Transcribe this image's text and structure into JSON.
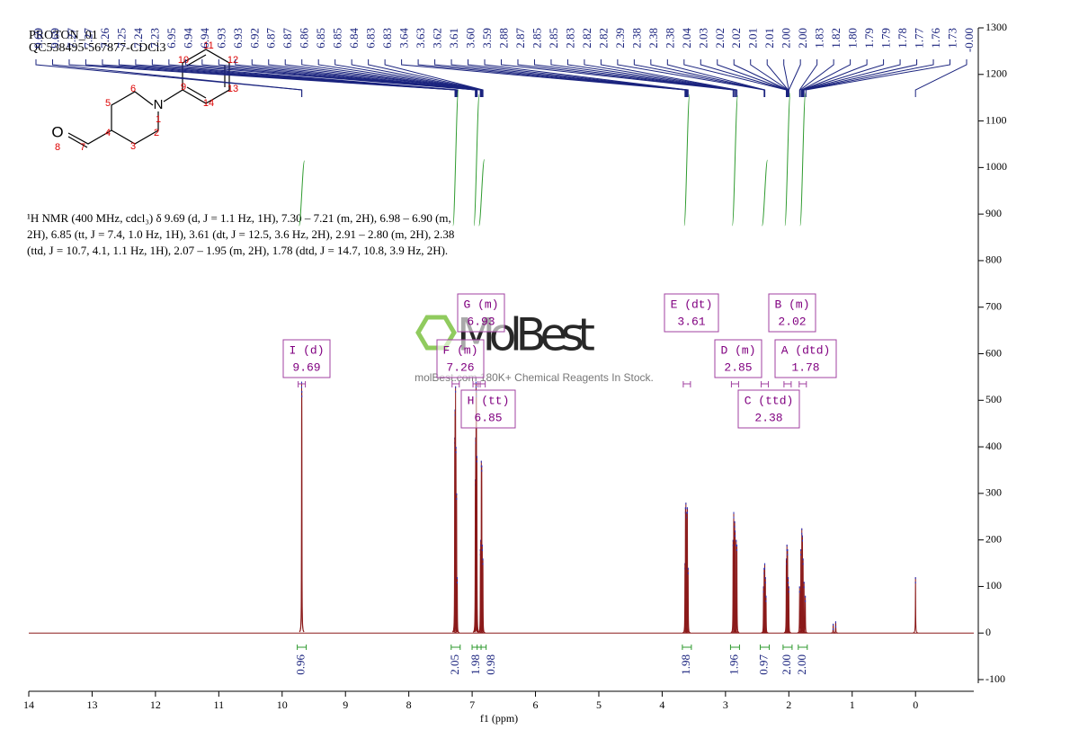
{
  "chart_data": {
    "type": "nmr",
    "title": "PROTON_01",
    "subtitle": "QC538495-567877-CDCl3",
    "xlabel": "f1 (ppm)",
    "xlim": [
      14,
      -0.92
    ],
    "xticks": [
      14,
      13,
      12,
      11,
      10,
      9,
      8,
      7,
      6,
      5,
      4,
      3,
      2,
      1,
      0
    ],
    "ylim": [
      -100,
      1300
    ],
    "yticks": [
      -100,
      0,
      100,
      200,
      300,
      400,
      500,
      600,
      700,
      800,
      900,
      1000,
      1100,
      1200,
      1300
    ],
    "color": "#8b1a1a",
    "x": [
      9.692,
      9.689,
      7.275,
      7.27,
      7.262,
      7.255,
      7.245,
      7.235,
      6.95,
      6.945,
      6.938,
      6.932,
      6.925,
      6.87,
      6.865,
      6.855,
      6.848,
      6.84,
      6.83,
      3.64,
      3.632,
      3.625,
      3.61,
      3.602,
      3.59,
      2.88,
      2.87,
      2.855,
      2.848,
      2.83,
      2.82,
      2.4,
      2.39,
      2.38,
      2.37,
      2.36,
      2.04,
      2.03,
      2.02,
      2.01,
      2.0,
      1.83,
      1.81,
      1.795,
      1.785,
      1.775,
      1.76,
      1.74,
      1.3,
      1.26,
      0.0
    ],
    "values": [
      540,
      520,
      420,
      480,
      530,
      400,
      300,
      120,
      330,
      420,
      540,
      520,
      380,
      180,
      200,
      370,
      360,
      190,
      160,
      150,
      270,
      280,
      260,
      270,
      140,
      200,
      260,
      240,
      220,
      200,
      190,
      100,
      140,
      150,
      120,
      80,
      160,
      190,
      180,
      120,
      100,
      100,
      180,
      225,
      210,
      160,
      110,
      80,
      20,
      25,
      120
    ],
    "peak_labels": [
      {
        "value": 9.69,
        "label": "9.69"
      },
      {
        "value": 9.69,
        "label": "9.69"
      },
      {
        "value": 7.27,
        "label": "7.27"
      },
      {
        "value": 7.27,
        "label": "7.27"
      },
      {
        "value": 7.26,
        "label": "7.26"
      },
      {
        "value": 7.25,
        "label": "7.25"
      },
      {
        "value": 7.24,
        "label": "7.24"
      },
      {
        "value": 7.23,
        "label": "7.23"
      },
      {
        "value": 6.95,
        "label": "6.95"
      },
      {
        "value": 6.94,
        "label": "6.94"
      },
      {
        "value": 6.94,
        "label": "6.94"
      },
      {
        "value": 6.93,
        "label": "6.93"
      },
      {
        "value": 6.93,
        "label": "6.93"
      },
      {
        "value": 6.92,
        "label": "6.92"
      },
      {
        "value": 6.87,
        "label": "6.87"
      },
      {
        "value": 6.87,
        "label": "6.87"
      },
      {
        "value": 6.86,
        "label": "6.86"
      },
      {
        "value": 6.85,
        "label": "6.85"
      },
      {
        "value": 6.85,
        "label": "6.85"
      },
      {
        "value": 6.84,
        "label": "6.84"
      },
      {
        "value": 6.83,
        "label": "6.83"
      },
      {
        "value": 6.83,
        "label": "6.83"
      },
      {
        "value": 3.64,
        "label": "3.64"
      },
      {
        "value": 3.63,
        "label": "3.63"
      },
      {
        "value": 3.62,
        "label": "3.62"
      },
      {
        "value": 3.61,
        "label": "3.61"
      },
      {
        "value": 3.6,
        "label": "3.60"
      },
      {
        "value": 3.59,
        "label": "3.59"
      },
      {
        "value": 2.88,
        "label": "2.88"
      },
      {
        "value": 2.87,
        "label": "2.87"
      },
      {
        "value": 2.85,
        "label": "2.85"
      },
      {
        "value": 2.85,
        "label": "2.85"
      },
      {
        "value": 2.83,
        "label": "2.83"
      },
      {
        "value": 2.82,
        "label": "2.82"
      },
      {
        "value": 2.82,
        "label": "2.82"
      },
      {
        "value": 2.39,
        "label": "2.39"
      },
      {
        "value": 2.38,
        "label": "2.38"
      },
      {
        "value": 2.38,
        "label": "2.38"
      },
      {
        "value": 2.38,
        "label": "2.38"
      },
      {
        "value": 2.04,
        "label": "2.04"
      },
      {
        "value": 2.03,
        "label": "2.03"
      },
      {
        "value": 2.02,
        "label": "2.02"
      },
      {
        "value": 2.02,
        "label": "2.02"
      },
      {
        "value": 2.01,
        "label": "2.01"
      },
      {
        "value": 2.01,
        "label": "2.01"
      },
      {
        "value": 2.0,
        "label": "2.00"
      },
      {
        "value": 2.0,
        "label": "2.00"
      },
      {
        "value": 1.83,
        "label": "1.83"
      },
      {
        "value": 1.82,
        "label": "1.82"
      },
      {
        "value": 1.8,
        "label": "1.80"
      },
      {
        "value": 1.79,
        "label": "1.79"
      },
      {
        "value": 1.79,
        "label": "1.79"
      },
      {
        "value": 1.78,
        "label": "1.78"
      },
      {
        "value": 1.77,
        "label": "1.77"
      },
      {
        "value": 1.76,
        "label": "1.76"
      },
      {
        "value": 1.73,
        "label": "1.73"
      },
      {
        "value": 0,
        "label": "-0.00"
      }
    ],
    "multiplets": [
      {
        "name": "I (d)",
        "shift": 9.69
      },
      {
        "name": "F (m)",
        "shift": 7.26
      },
      {
        "name": "G (m)",
        "shift": 6.93
      },
      {
        "name": "H (tt)",
        "shift": 6.85
      },
      {
        "name": "E (dt)",
        "shift": 3.61
      },
      {
        "name": "D (m)",
        "shift": 2.85
      },
      {
        "name": "C (ttd)",
        "shift": 2.38
      },
      {
        "name": "B (m)",
        "shift": 2.02
      },
      {
        "name": "A (dtd)",
        "shift": 1.78
      }
    ],
    "integrals": [
      {
        "center": 9.69,
        "value": 0.96
      },
      {
        "center": 7.26,
        "value": 2.05
      },
      {
        "center": 6.93,
        "value": 1.98
      },
      {
        "center": 6.85,
        "value": 0.98
      },
      {
        "center": 3.61,
        "value": 1.98
      },
      {
        "center": 2.85,
        "value": 1.96
      },
      {
        "center": 2.38,
        "value": 0.97
      },
      {
        "center": 2.02,
        "value": {
          "value": 2.0,
          "label": "2.00"
        }
      },
      {
        "center": 1.78,
        "value": {
          "value": 2.0,
          "label": "2.00"
        }
      }
    ],
    "description": [
      "¹H NMR (400 MHz, cdcl₃) δ 9.69 (d, J = 1.1 Hz, 1H), 7.30 – 7.21 (m, 2H), 6.98 – 6.90 (m,",
      "2H), 6.85 (tt, J = 7.4, 1.0 Hz, 1H), 3.61 (dt, J = 12.5, 3.6 Hz, 2H), 2.91 – 2.80 (m, 2H), 2.38",
      "(ttd, J = 10.7, 4.1, 1.1 Hz, 1H), 2.07 – 1.95 (m, 2H), 1.78 (dtd, J = 14.7, 10.8, 3.9 Hz, 2H)."
    ],
    "structure_labels": [
      "O",
      "8",
      "7",
      "4",
      "3",
      "2",
      "1",
      "N",
      "5",
      "6",
      "9",
      "10",
      "11",
      "12",
      "13",
      "14"
    ],
    "watermark": "MolBest",
    "watermark_text": "molBest.com 180K+ Chemical Reagents In Stock."
  }
}
